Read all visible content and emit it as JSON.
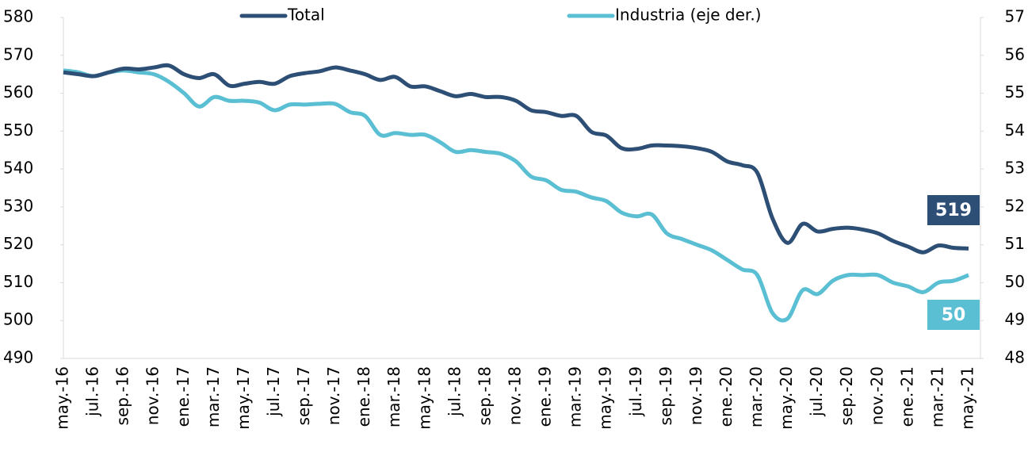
{
  "chart_data": {
    "type": "line",
    "categories": [
      "may.-16",
      null,
      "jul.-16",
      null,
      "sep.-16",
      null,
      "nov.-16",
      null,
      "ene.-17",
      null,
      "mar.-17",
      null,
      "may.-17",
      null,
      "jul.-17",
      null,
      "sep.-17",
      null,
      "nov.-17",
      null,
      "ene.-18",
      null,
      "mar.-18",
      null,
      "may.-18",
      null,
      "jul.-18",
      null,
      "sep.-18",
      null,
      "nov.-18",
      null,
      "ene.-19",
      null,
      "mar.-19",
      null,
      "may.-19",
      null,
      "jul.-19",
      null,
      "sep.-19",
      null,
      "nov.-19",
      null,
      "ene.-20",
      null,
      "mar.-20",
      null,
      "may.-20",
      null,
      "jul.-20",
      null,
      "sep.-20",
      null,
      "nov.-20",
      null,
      "ene.-21",
      null,
      "mar.-21",
      null,
      "may.-21"
    ],
    "series": [
      {
        "name": "Total",
        "color": "#2e4f75",
        "last_label": "519",
        "values": [
          565.5,
          565,
          564.5,
          565.5,
          566.5,
          566.3,
          566.8,
          567.3,
          565,
          564,
          565,
          562,
          562.5,
          563,
          562.5,
          564.5,
          565.3,
          565.8,
          566.8,
          566,
          565,
          563.5,
          564.3,
          561.8,
          561.8,
          560.5,
          559.2,
          559.8,
          559,
          559,
          558,
          555.5,
          555,
          554,
          554,
          549.8,
          548.8,
          545.5,
          545.3,
          546.2,
          546.2,
          546,
          545.5,
          544.5,
          542,
          541,
          539,
          527,
          520.5,
          525.5,
          523.5,
          524.2,
          524.5,
          524,
          523,
          521,
          519.5,
          518,
          519.8,
          519.2,
          519
        ]
      },
      {
        "name": "Industria (eje der.)",
        "color": "#5bbfd4",
        "axis": "y2",
        "last_label": "50",
        "values": [
          55.6,
          55.55,
          55.45,
          55.55,
          55.6,
          55.55,
          55.5,
          55.3,
          55.0,
          54.65,
          54.9,
          54.8,
          54.8,
          54.75,
          54.55,
          54.7,
          54.7,
          54.72,
          54.72,
          54.5,
          54.4,
          53.9,
          53.95,
          53.9,
          53.9,
          53.7,
          53.45,
          53.5,
          53.45,
          53.4,
          53.2,
          52.8,
          52.7,
          52.45,
          52.4,
          52.25,
          52.15,
          51.85,
          51.75,
          51.8,
          51.3,
          51.15,
          51.0,
          50.85,
          50.6,
          50.35,
          50.2,
          49.2,
          49.05,
          49.8,
          49.7,
          50.05,
          50.2,
          50.2,
          50.2,
          50.0,
          49.9,
          49.75,
          50.0,
          50.05,
          50.2
        ]
      }
    ],
    "ylim": [
      490,
      580
    ],
    "yticks": [
      490,
      500,
      510,
      520,
      530,
      540,
      550,
      560,
      570,
      580
    ],
    "y2lim": [
      48,
      57
    ],
    "y2ticks": [
      48,
      49,
      50,
      51,
      52,
      53,
      54,
      55,
      56,
      57
    ],
    "legend": "top"
  }
}
